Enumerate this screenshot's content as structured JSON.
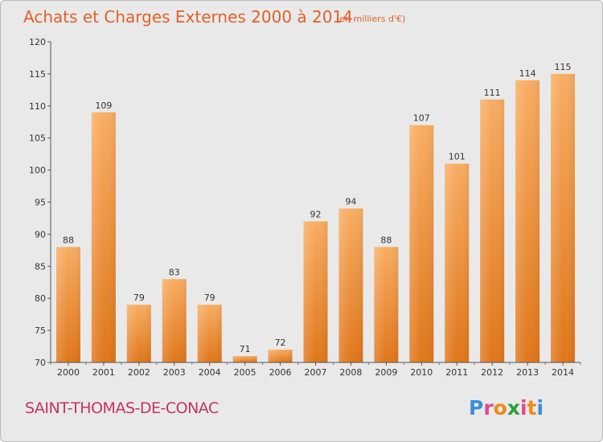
{
  "title": "Achats et Charges Externes 2000 à 2014",
  "unit": "(en milliers d'€)",
  "commune": "SAINT-THOMAS-DE-CONAC",
  "brand": {
    "letters": [
      "P",
      "r",
      "o",
      "x",
      "i",
      "t",
      "i"
    ],
    "colors": [
      "#3a8fd6",
      "#e04b8c",
      "#f08a1a",
      "#2c9f3e",
      "#e04b8c",
      "#f08a1a",
      "#3a8fd6"
    ]
  },
  "colors": {
    "bar_light": "#f8ad62",
    "bar_dark": "#e0761a",
    "background": "#e9e9e9",
    "title": "#e0612a"
  },
  "chart_data": {
    "type": "bar",
    "categories": [
      "2000",
      "2001",
      "2002",
      "2003",
      "2004",
      "2005",
      "2006",
      "2007",
      "2008",
      "2009",
      "2010",
      "2011",
      "2012",
      "2013",
      "2014"
    ],
    "values": [
      88,
      109,
      79,
      83,
      79,
      71,
      72,
      92,
      94,
      88,
      107,
      101,
      111,
      114,
      115
    ],
    "title": "Achats et Charges Externes 2000 à 2014",
    "xlabel": "",
    "ylabel": "",
    "ylim": [
      70,
      120
    ],
    "yticks": [
      70,
      75,
      80,
      85,
      90,
      95,
      100,
      105,
      110,
      115,
      120
    ],
    "grid": false,
    "legend": "none"
  }
}
